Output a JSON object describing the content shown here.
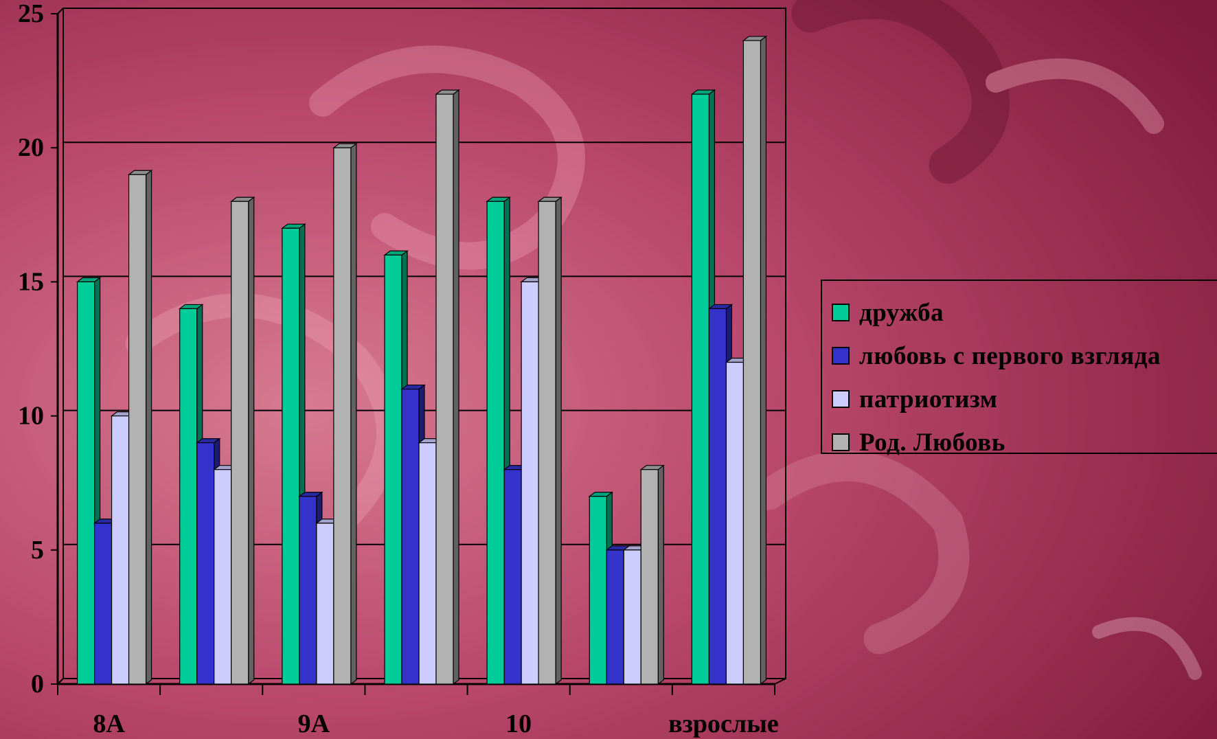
{
  "chart_data": {
    "type": "bar",
    "categories": [
      "8А",
      "",
      "9А",
      "",
      "10",
      "",
      "взрослые"
    ],
    "series": [
      {
        "name": "дружба",
        "color": "#00cc99",
        "values": [
          15,
          14,
          17,
          16,
          18,
          7,
          22
        ]
      },
      {
        "name": "любовь с первого взгляда",
        "color": "#3333cc",
        "values": [
          6,
          9,
          7,
          11,
          8,
          5,
          14
        ]
      },
      {
        "name": "патриотизм",
        "color": "#ccccff",
        "values": [
          10,
          8,
          6,
          9,
          15,
          5,
          12
        ]
      },
      {
        "name": "Род. Любовь",
        "color": "#b2b2b2",
        "values": [
          19,
          18,
          20,
          22,
          18,
          8,
          24
        ]
      }
    ],
    "ylim": [
      0,
      25
    ],
    "yticks": [
      "0",
      "5",
      "10",
      "15",
      "20",
      "25"
    ],
    "grid": true,
    "legend_position": "right",
    "background": "#b03a64"
  }
}
